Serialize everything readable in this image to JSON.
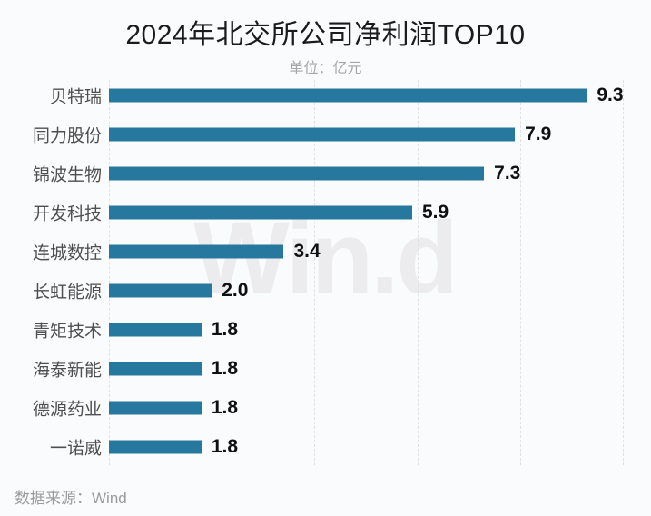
{
  "title": "2024年北交所公司净利润TOP10",
  "subtitle": "单位：亿元",
  "footer": "数据来源：Wind",
  "watermark": "Win.d",
  "colors": {
    "bar": "#27789e",
    "gridline": "#e0e1e5",
    "background": "#fafbfd",
    "title_text": "#1b1b1b",
    "category_text": "#4f4f4f",
    "value_text": "#101010",
    "muted_text": "#a6a6a6",
    "watermark_text": "#ececee"
  },
  "chart_data": {
    "type": "bar",
    "orientation": "horizontal",
    "title": "2024年北交所公司净利润TOP10",
    "unit_label": "单位：亿元",
    "source_label": "数据来源：Wind",
    "categories": [
      "贝特瑞",
      "同力股份",
      "锦波生物",
      "开发科技",
      "连城数控",
      "长虹能源",
      "青矩技术",
      "海泰新能",
      "德源药业",
      "一诺威"
    ],
    "values": [
      9.3,
      7.9,
      7.3,
      5.9,
      3.4,
      2.0,
      1.8,
      1.8,
      1.8,
      1.8
    ],
    "value_decimals": 1,
    "xlim": [
      0,
      10
    ],
    "gridline_step": 2,
    "grid": true,
    "legend": "none",
    "value_labels": true
  }
}
